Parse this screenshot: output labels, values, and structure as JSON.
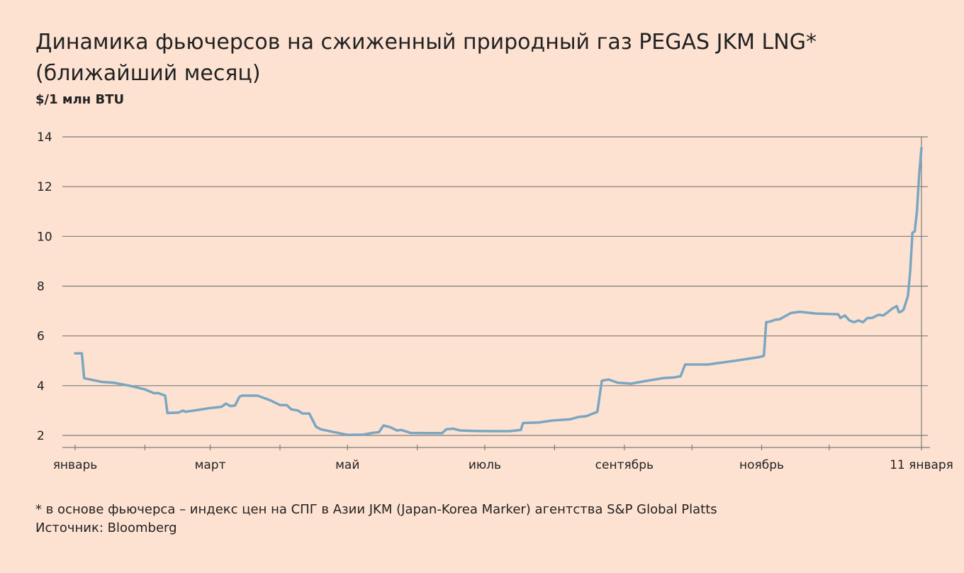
{
  "title_line1": "Динамика фьючерсов на сжиженный природный газ PEGAS JKM LNG*",
  "title_line2": "(ближайший месяц)",
  "unit_label": "$/1 млн BTU",
  "footnote": "* в основе фьючерса – индекс цен на СПГ в Азии JKM (Japan-Korea Marker) агентства S&P Global Platts",
  "source": "Источник: Bloomberg",
  "colors": {
    "background": "#fde2d2",
    "line": "#7aa6c2",
    "grid": "#7d7b7a",
    "text": "#222222"
  },
  "chart_data": {
    "type": "line",
    "title": "Динамика фьючерсов на сжиженный природный газ PEGAS JKM LNG* (ближайший месяц)",
    "ylabel": "$/1 млн BTU",
    "ylim": [
      2,
      14
    ],
    "yticks": [
      2,
      4,
      6,
      8,
      10,
      12,
      14
    ],
    "grid": true,
    "xlim": [
      "2020-01-01",
      "2021-01-11"
    ],
    "x_ticks": [
      {
        "date": "2020-01-01",
        "label": "январь"
      },
      {
        "date": "2020-02-01",
        "label": ""
      },
      {
        "date": "2020-03-01",
        "label": "март"
      },
      {
        "date": "2020-04-01",
        "label": ""
      },
      {
        "date": "2020-05-01",
        "label": "май"
      },
      {
        "date": "2020-06-01",
        "label": ""
      },
      {
        "date": "2020-07-01",
        "label": "июль"
      },
      {
        "date": "2020-08-01",
        "label": ""
      },
      {
        "date": "2020-09-01",
        "label": "сентябрь"
      },
      {
        "date": "2020-10-01",
        "label": ""
      },
      {
        "date": "2020-11-01",
        "label": "ноябрь"
      },
      {
        "date": "2020-12-01",
        "label": ""
      },
      {
        "date": "2021-01-11",
        "label": "11 января"
      }
    ],
    "series": [
      {
        "values": [
          [
            "2020-01-01",
            5.3
          ],
          [
            "2020-01-04",
            5.3
          ],
          [
            "2020-01-05",
            4.3
          ],
          [
            "2020-01-13",
            4.15
          ],
          [
            "2020-01-18",
            4.12
          ],
          [
            "2020-01-25",
            4.0
          ],
          [
            "2020-02-01",
            3.85
          ],
          [
            "2020-02-05",
            3.7
          ],
          [
            "2020-02-07",
            3.7
          ],
          [
            "2020-02-10",
            3.6
          ],
          [
            "2020-02-11",
            2.9
          ],
          [
            "2020-02-16",
            2.92
          ],
          [
            "2020-02-18",
            3.0
          ],
          [
            "2020-02-19",
            2.95
          ],
          [
            "2020-02-25",
            3.03
          ],
          [
            "2020-03-01",
            3.1
          ],
          [
            "2020-03-06",
            3.15
          ],
          [
            "2020-03-08",
            3.28
          ],
          [
            "2020-03-10",
            3.18
          ],
          [
            "2020-03-12",
            3.2
          ],
          [
            "2020-03-14",
            3.55
          ],
          [
            "2020-03-15",
            3.6
          ],
          [
            "2020-03-22",
            3.6
          ],
          [
            "2020-03-28",
            3.4
          ],
          [
            "2020-04-01",
            3.22
          ],
          [
            "2020-04-04",
            3.22
          ],
          [
            "2020-04-06",
            3.05
          ],
          [
            "2020-04-09",
            3.0
          ],
          [
            "2020-04-11",
            2.88
          ],
          [
            "2020-04-14",
            2.88
          ],
          [
            "2020-04-17",
            2.35
          ],
          [
            "2020-04-19",
            2.25
          ],
          [
            "2020-04-24",
            2.15
          ],
          [
            "2020-04-28",
            2.08
          ],
          [
            "2020-05-01",
            2.02
          ],
          [
            "2020-05-08",
            2.03
          ],
          [
            "2020-05-12",
            2.1
          ],
          [
            "2020-05-15",
            2.13
          ],
          [
            "2020-05-17",
            2.4
          ],
          [
            "2020-05-20",
            2.33
          ],
          [
            "2020-05-23",
            2.2
          ],
          [
            "2020-05-25",
            2.22
          ],
          [
            "2020-05-29",
            2.1
          ],
          [
            "2020-06-05",
            2.09
          ],
          [
            "2020-06-12",
            2.09
          ],
          [
            "2020-06-14",
            2.25
          ],
          [
            "2020-06-17",
            2.27
          ],
          [
            "2020-06-20",
            2.2
          ],
          [
            "2020-06-27",
            2.18
          ],
          [
            "2020-07-05",
            2.17
          ],
          [
            "2020-07-12",
            2.17
          ],
          [
            "2020-07-17",
            2.22
          ],
          [
            "2020-07-18",
            2.5
          ],
          [
            "2020-07-25",
            2.52
          ],
          [
            "2020-07-31",
            2.6
          ],
          [
            "2020-08-08",
            2.65
          ],
          [
            "2020-08-12",
            2.75
          ],
          [
            "2020-08-15",
            2.77
          ],
          [
            "2020-08-20",
            2.95
          ],
          [
            "2020-08-22",
            4.2
          ],
          [
            "2020-08-25",
            4.25
          ],
          [
            "2020-08-29",
            4.12
          ],
          [
            "2020-09-04",
            4.08
          ],
          [
            "2020-09-10",
            4.18
          ],
          [
            "2020-09-18",
            4.3
          ],
          [
            "2020-09-23",
            4.33
          ],
          [
            "2020-09-26",
            4.38
          ],
          [
            "2020-09-28",
            4.85
          ],
          [
            "2020-10-08",
            4.85
          ],
          [
            "2020-10-20",
            5.0
          ],
          [
            "2020-10-31",
            5.15
          ],
          [
            "2020-11-02",
            5.2
          ],
          [
            "2020-11-03",
            6.55
          ],
          [
            "2020-11-05",
            6.58
          ],
          [
            "2020-11-07",
            6.65
          ],
          [
            "2020-11-09",
            6.67
          ],
          [
            "2020-11-14",
            6.92
          ],
          [
            "2020-11-18",
            6.97
          ],
          [
            "2020-11-25",
            6.9
          ],
          [
            "2020-12-05",
            6.87
          ],
          [
            "2020-12-06",
            6.72
          ],
          [
            "2020-12-08",
            6.82
          ],
          [
            "2020-12-10",
            6.62
          ],
          [
            "2020-12-12",
            6.55
          ],
          [
            "2020-12-14",
            6.62
          ],
          [
            "2020-12-16",
            6.55
          ],
          [
            "2020-12-18",
            6.72
          ],
          [
            "2020-12-20",
            6.72
          ],
          [
            "2020-12-23",
            6.85
          ],
          [
            "2020-12-25",
            6.82
          ],
          [
            "2020-12-27",
            6.95
          ],
          [
            "2020-12-29",
            7.1
          ],
          [
            "2020-12-31",
            7.2
          ],
          [
            "2021-01-01",
            6.95
          ],
          [
            "2021-01-02",
            6.98
          ],
          [
            "2021-01-03",
            7.05
          ],
          [
            "2021-01-05",
            7.6
          ],
          [
            "2021-01-06",
            8.6
          ],
          [
            "2021-01-07",
            10.15
          ],
          [
            "2021-01-08",
            10.2
          ],
          [
            "2021-01-09",
            11.0
          ],
          [
            "2021-01-10",
            12.5
          ],
          [
            "2021-01-11",
            13.55
          ]
        ]
      }
    ]
  }
}
